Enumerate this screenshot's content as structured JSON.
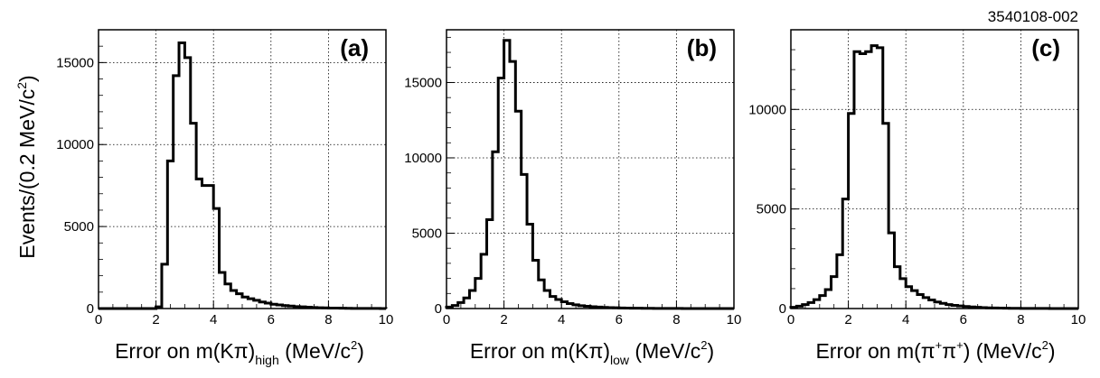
{
  "figure_id": "3540108-002",
  "ylabel": {
    "prefix": "Events/(0.2 MeV/c",
    "sup": "2",
    "suffix": ")"
  },
  "chart_data": [
    {
      "type": "histogram",
      "panel_label": "(a)",
      "xlabel": {
        "prefix": "Error on m(K",
        "pi": "π",
        "mid": ")",
        "sub": "high",
        "suffix": " (MeV/c",
        "sup": "2",
        "end": ")"
      },
      "xlim": [
        0,
        10
      ],
      "ylim": [
        0,
        17000
      ],
      "xticks": [
        0,
        2,
        4,
        6,
        8,
        10
      ],
      "yticks": [
        0,
        5000,
        10000,
        15000
      ],
      "grid": true,
      "bin_width": 0.2,
      "x_start": 0,
      "values": [
        0,
        0,
        0,
        0,
        0,
        0,
        0,
        0,
        0,
        0,
        100,
        2700,
        9000,
        14200,
        16200,
        15300,
        11300,
        7900,
        7500,
        7500,
        6100,
        2200,
        1500,
        1100,
        900,
        700,
        600,
        500,
        400,
        330,
        260,
        220,
        180,
        150,
        120,
        100,
        80,
        60,
        50,
        40,
        30,
        25,
        20,
        15,
        10,
        8,
        6,
        5,
        4,
        2
      ]
    },
    {
      "type": "histogram",
      "panel_label": "(b)",
      "xlabel": {
        "prefix": "Error on m(K",
        "pi": "π",
        "mid": ")",
        "sub": "low",
        "suffix": " (MeV/c",
        "sup": "2",
        "end": ")"
      },
      "xlim": [
        0,
        10
      ],
      "ylim": [
        0,
        18500
      ],
      "xticks": [
        0,
        2,
        4,
        6,
        8,
        10
      ],
      "yticks": [
        0,
        5000,
        10000,
        15000
      ],
      "grid": true,
      "bin_width": 0.2,
      "x_start": 0,
      "values": [
        100,
        200,
        400,
        700,
        1200,
        2000,
        3600,
        5900,
        10400,
        15300,
        17800,
        16400,
        13100,
        8900,
        5600,
        3200,
        1900,
        1200,
        800,
        600,
        450,
        330,
        250,
        190,
        150,
        120,
        95,
        75,
        60,
        50,
        40,
        32,
        25,
        20,
        15,
        12,
        10,
        8,
        6,
        5,
        4,
        3,
        3,
        2,
        2,
        1,
        1,
        1,
        0,
        0
      ]
    },
    {
      "type": "histogram",
      "panel_label": "(c)",
      "xlabel": {
        "prefix": "Error on m(",
        "pi": "π",
        "sup1": "+",
        "pi2": "π",
        "sup2": "+",
        "mid": ")",
        "suffix": " (MeV/c",
        "sup": "2",
        "end": ")"
      },
      "xlim": [
        0,
        10
      ],
      "ylim": [
        0,
        14000
      ],
      "xticks": [
        0,
        2,
        4,
        6,
        8,
        10
      ],
      "yticks": [
        0,
        5000,
        10000
      ],
      "grid": true,
      "bin_width": 0.2,
      "x_start": 0,
      "values": [
        60,
        120,
        200,
        300,
        450,
        650,
        950,
        1600,
        2700,
        5500,
        9800,
        12900,
        12800,
        12900,
        13200,
        13100,
        9300,
        3800,
        2100,
        1500,
        1100,
        900,
        700,
        550,
        430,
        330,
        260,
        200,
        160,
        130,
        100,
        80,
        60,
        45,
        35,
        28,
        22,
        17,
        13,
        10,
        8,
        6,
        5,
        4,
        3,
        2,
        2,
        1,
        1,
        0
      ]
    }
  ]
}
